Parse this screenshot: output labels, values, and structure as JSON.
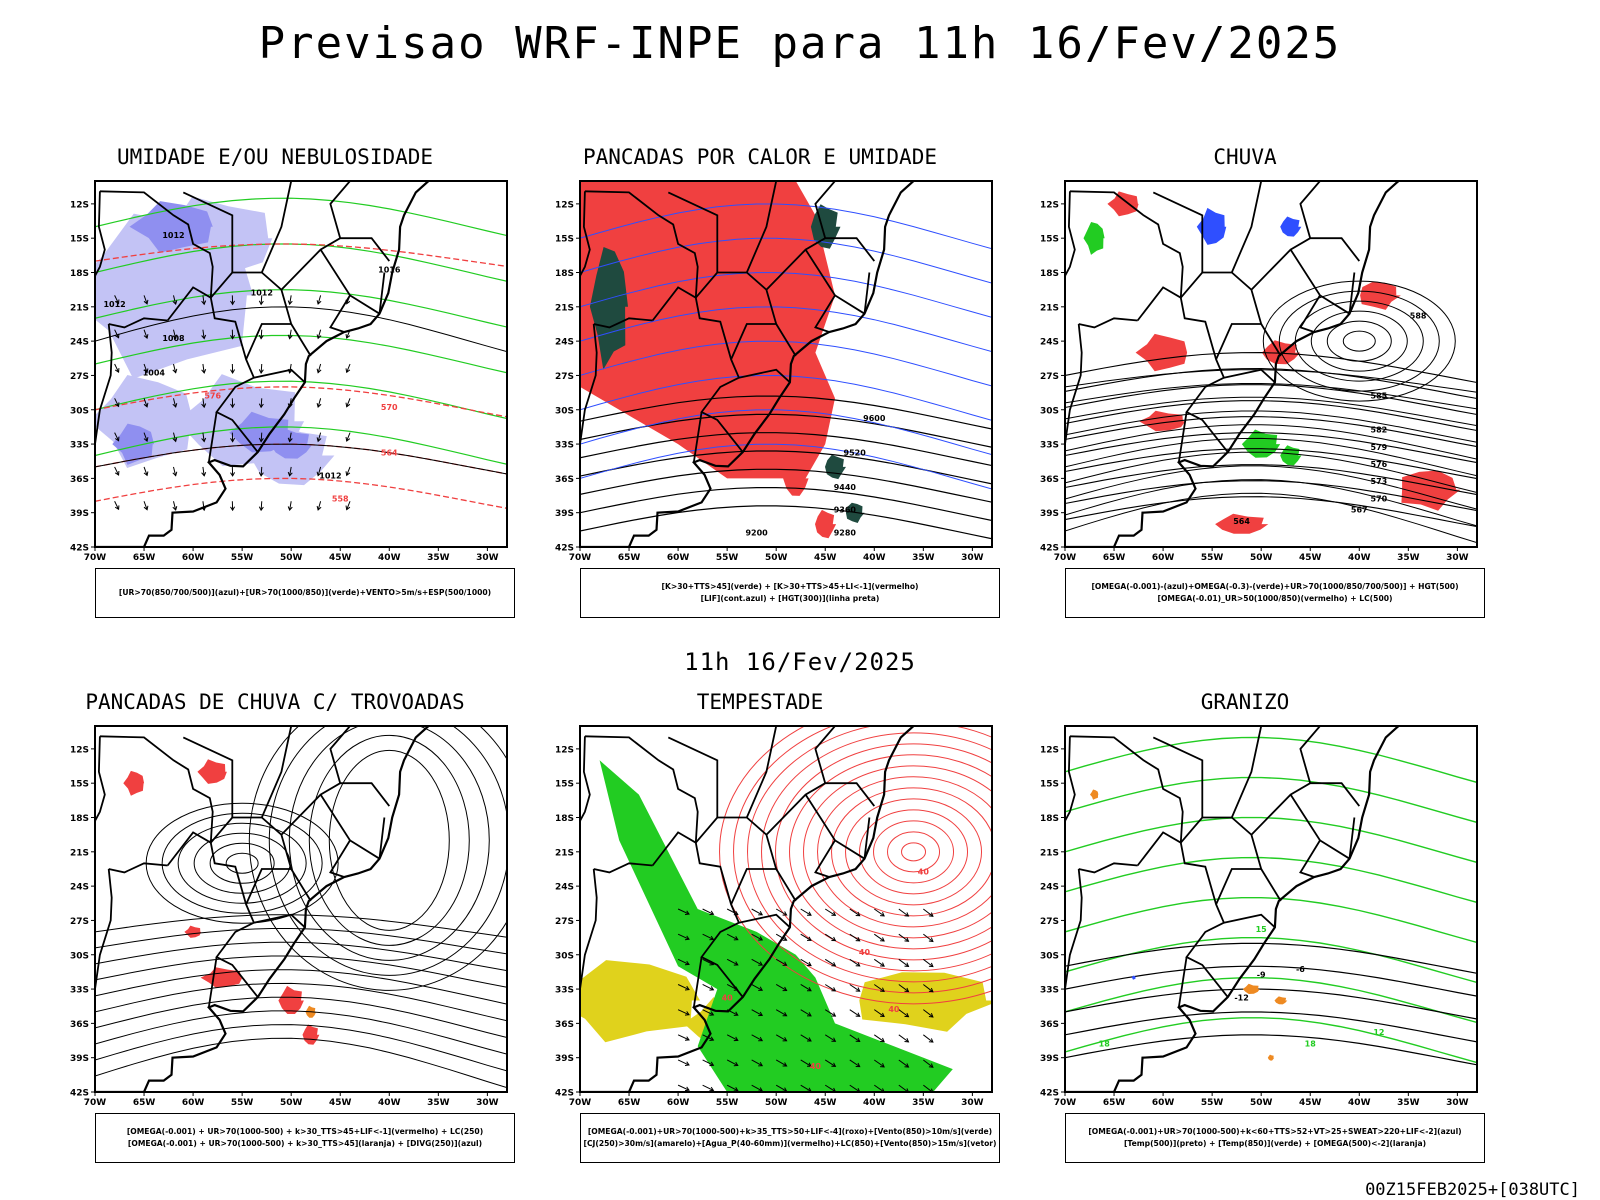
{
  "title": "Previsao WRF-INPE  para 11h 16/Fev/2025",
  "mid_title": "11h 16/Fev/2025",
  "footer": "00Z15FEB2025+[038UTC]",
  "axes": {
    "lat_labels": [
      "12S",
      "15S",
      "18S",
      "21S",
      "24S",
      "27S",
      "30S",
      "33S",
      "36S",
      "39S",
      "42S"
    ],
    "lon_labels": [
      "70W",
      "65W",
      "60W",
      "55W",
      "50W",
      "45W",
      "40W",
      "35W",
      "30W"
    ]
  },
  "colors": {
    "blue_shade": "#8f8ff0",
    "light_blue_shade": "#c3c3f5",
    "green": "#22cc22",
    "red": "#f04040",
    "dark_teal": "#1f4a3f",
    "yellow": "#e0d21c",
    "orange": "#ee8a22",
    "blue_line": "#2f4fff"
  },
  "panels": [
    {
      "id": "umidade",
      "title": "UMIDADE E/OU NEBULOSIDADE",
      "legend": [
        "[UR>70(850/700/500)](azul)+[UR>70(1000/850)](verde)+VENTO>5m/s+ESP(500/1000)"
      ],
      "contour_labels": [
        "1012",
        "1012",
        "1012",
        "1008",
        "1004",
        "1016",
        "1012",
        "576",
        "570",
        "564",
        "558"
      ]
    },
    {
      "id": "pancadas-calor",
      "title": "PANCADAS POR CALOR E UMIDADE",
      "legend": [
        "[K>30+TTS>45](verde) + [K>30+TTS>45+LI<-1](vermelho)",
        "[LIF](cont.azul) + [HGT(300)](linha preta)"
      ],
      "contour_labels": [
        "9600",
        "9520",
        "9440",
        "9360",
        "9280",
        "9200"
      ]
    },
    {
      "id": "chuva",
      "title": "CHUVA",
      "legend": [
        "[OMEGA(-0.001)-(azul)+OMEGA(-0.3)-(verde)+UR>70(1000/850/700/500)] + HGT(500)",
        "[OMEGA(-0.01)_UR>50(1000/850)(vermelho) + LC(500)"
      ],
      "contour_labels": [
        "588",
        "585",
        "582",
        "579",
        "576",
        "573",
        "570",
        "567",
        "564"
      ]
    },
    {
      "id": "pancadas-trovoadas",
      "title": "PANCADAS DE CHUVA C/ TROVOADAS",
      "legend": [
        "[OMEGA(-0.001) + UR>70(1000-500) + k>30_TTS>45+LIF<-1](vermelho) + LC(250)",
        "[OMEGA(-0.001) + UR>70(1000-500) + k>30_TTS>45](laranja) + [DIVG(250)](azul)"
      ],
      "contour_labels": []
    },
    {
      "id": "tempestade",
      "title": "TEMPESTADE",
      "legend": [
        "[OMEGA(-0.001)+UR>70(1000-500)+k>35_TTS>50+LIF<-4](roxo)+[Vento(850)>10m/s](verde)",
        "[CJ(250)>30m/s](amarelo)+[Agua_P(40-60mm)](vermelho)+LC(850)+[Vento(850)>15m/s](vetor)"
      ],
      "contour_labels": [
        "40",
        "40",
        "40",
        "40",
        "40"
      ]
    },
    {
      "id": "granizo",
      "title": "GRANIZO",
      "legend": [
        "[OMEGA(-0.001)+UR>70(1000-500)+k<60+TTS>52+VT>25+SWEAT>220+LIF<-2](azul)",
        "[Temp(500)](preto) + [Temp(850)](verde) + [OMEGA(500)<-2](laranja)"
      ],
      "contour_labels": [
        "-12",
        "-9",
        "-6",
        "15",
        "18",
        "18",
        "12"
      ]
    }
  ]
}
